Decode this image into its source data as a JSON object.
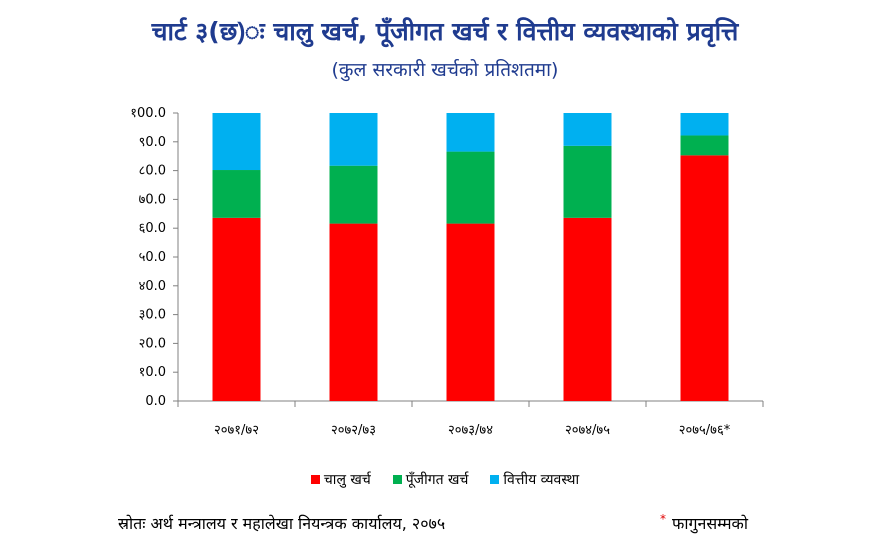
{
  "title": "चार्ट ३(छ)ः चालु खर्च, पूँजीगत खर्च र वित्तीय व्यवस्थाको प्रवृत्ति",
  "subtitle": "(कुल सरकारी खर्चको प्रतिशतमा)",
  "source": "स्रोतः अर्थ मन्त्रालय र महालेखा नियन्त्रक कार्यालय, २०७५",
  "footnote_mark": "*",
  "footnote": "फागुनसम्मको",
  "chart_data": {
    "type": "bar",
    "stacked": true,
    "categories": [
      "२०७१/७२",
      "२०७२/७३",
      "२०७३/७४",
      "२०७४/७५",
      "२०७५/७६*"
    ],
    "series": [
      {
        "name": "चालु खर्च",
        "color": "#ff0000",
        "values": [
          63.6,
          61.6,
          61.6,
          63.6,
          85.3
        ]
      },
      {
        "name": "पूँजीगत खर्च",
        "color": "#00b050",
        "values": [
          16.6,
          20.1,
          25.0,
          25.0,
          6.9
        ]
      },
      {
        "name": "वित्तीय व्यवस्था",
        "color": "#00b0f0",
        "values": [
          19.8,
          18.3,
          13.4,
          11.4,
          7.8
        ]
      }
    ],
    "ylim": [
      0,
      100
    ],
    "yticks": [
      0,
      10,
      20,
      30,
      40,
      50,
      60,
      70,
      80,
      90,
      100
    ],
    "ytick_labels": [
      "0.0",
      "१0.0",
      "२0.0",
      "३0.0",
      "४0.0",
      "५0.0",
      "६0.0",
      "७0.0",
      "८0.0",
      "९0.0",
      "१00.0"
    ],
    "grid": false,
    "legend_position": "bottom"
  }
}
